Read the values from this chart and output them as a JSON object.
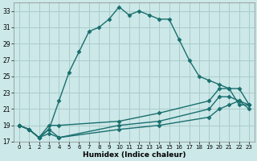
{
  "title": "",
  "xlabel": "Humidex (Indice chaleur)",
  "bg_color": "#cce8e8",
  "grid_color": "#aacccc",
  "line_color": "#1a6e6e",
  "xlim": [
    -0.5,
    23.5
  ],
  "ylim": [
    17,
    34
  ],
  "yticks": [
    17,
    19,
    21,
    23,
    25,
    27,
    29,
    31,
    33
  ],
  "xticks": [
    0,
    1,
    2,
    3,
    4,
    5,
    6,
    7,
    8,
    9,
    10,
    11,
    12,
    13,
    14,
    15,
    16,
    17,
    18,
    19,
    20,
    21,
    22,
    23
  ],
  "s1_x": [
    0,
    1,
    2,
    3,
    4,
    5,
    6,
    7,
    8,
    9,
    10,
    11,
    12,
    13,
    14,
    15,
    16,
    17,
    18,
    19,
    20,
    21,
    22,
    23
  ],
  "s1_y": [
    19.0,
    18.5,
    17.5,
    18.5,
    22.0,
    25.5,
    28.0,
    30.5,
    31.0,
    32.0,
    33.5,
    32.5,
    33.0,
    32.5,
    32.0,
    32.0,
    29.5,
    27.0,
    25.0,
    24.5,
    24.0,
    23.5,
    21.5,
    21.5
  ],
  "s2_x": [
    0,
    1,
    2,
    3,
    4,
    10,
    14,
    19,
    20,
    21,
    22,
    23
  ],
  "s2_y": [
    19.0,
    18.5,
    17.5,
    19.0,
    19.0,
    19.5,
    20.5,
    22.0,
    23.5,
    23.5,
    23.5,
    21.5
  ],
  "s3_x": [
    0,
    1,
    2,
    3,
    4,
    10,
    14,
    19,
    20,
    21,
    22,
    23
  ],
  "s3_y": [
    19.0,
    18.5,
    17.5,
    18.5,
    17.5,
    19.0,
    19.5,
    21.0,
    22.5,
    22.5,
    22.0,
    21.5
  ],
  "s4_x": [
    0,
    1,
    2,
    3,
    4,
    10,
    14,
    19,
    20,
    21,
    22,
    23
  ],
  "s4_y": [
    19.0,
    18.5,
    17.5,
    18.0,
    17.5,
    18.5,
    19.0,
    20.0,
    21.0,
    21.5,
    22.0,
    21.0
  ]
}
